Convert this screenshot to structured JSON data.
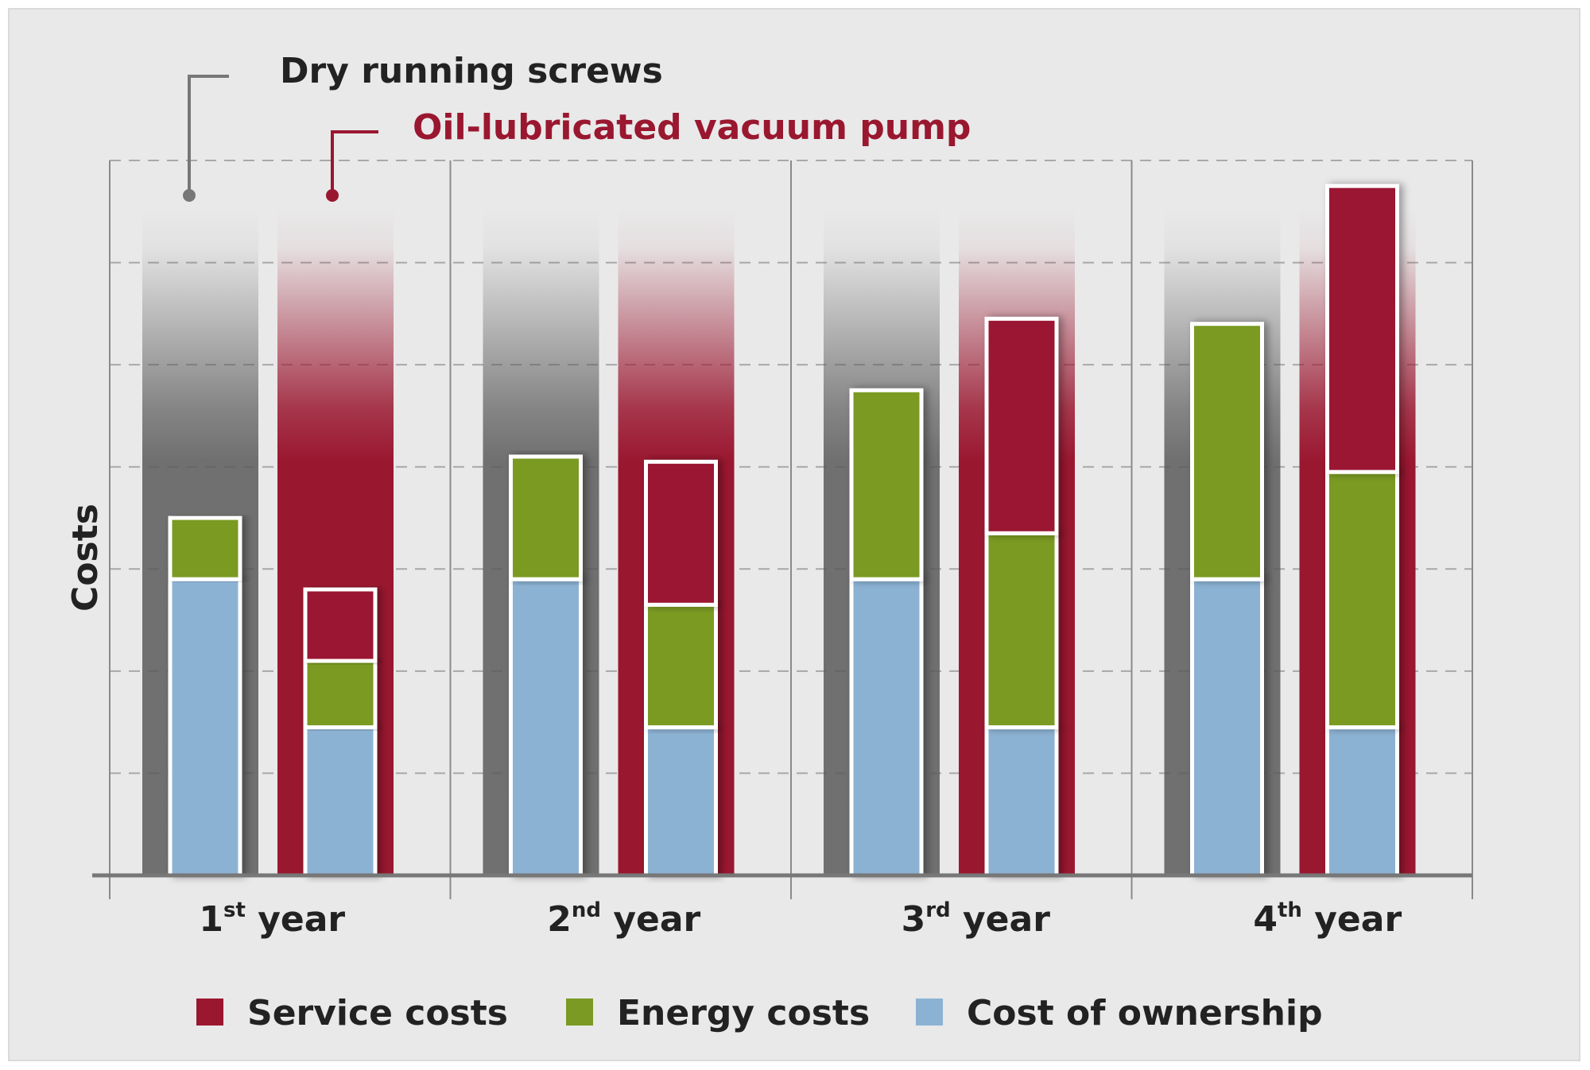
{
  "chart_data": {
    "type": "bar",
    "variant": "stacked",
    "title": "",
    "xlabel": "",
    "ylabel": "Costs",
    "ylim": [
      0,
      7
    ],
    "grid": true,
    "categories": [
      {
        "num": "1",
        "sup": "st",
        "rest": " year"
      },
      {
        "num": "2",
        "sup": "nd",
        "rest": " year"
      },
      {
        "num": "3",
        "sup": "rd",
        "rest": " year"
      },
      {
        "num": "4",
        "sup": "th",
        "rest": " year"
      }
    ],
    "groups": [
      {
        "name": "Dry running screws",
        "color": "#5a5a5a",
        "stacks": [
          {
            "ownership": 2.9,
            "energy": 0.6,
            "service": 0
          },
          {
            "ownership": 2.9,
            "energy": 1.2,
            "service": 0
          },
          {
            "ownership": 2.9,
            "energy": 1.85,
            "service": 0
          },
          {
            "ownership": 2.9,
            "energy": 2.5,
            "service": 0
          }
        ]
      },
      {
        "name": "Oil-lubricated vacuum pump",
        "color": "#9a1730",
        "stacks": [
          {
            "ownership": 1.45,
            "energy": 0.65,
            "service": 0.7
          },
          {
            "ownership": 1.45,
            "energy": 1.2,
            "service": 1.4
          },
          {
            "ownership": 1.45,
            "energy": 1.9,
            "service": 2.1
          },
          {
            "ownership": 1.45,
            "energy": 2.5,
            "service": 2.8
          }
        ]
      }
    ],
    "series": [
      {
        "key": "service",
        "name": "Service costs",
        "color": "#9a1730"
      },
      {
        "key": "energy",
        "name": "Energy costs",
        "color": "#7a9a24"
      },
      {
        "key": "ownership",
        "name": "Cost of ownership",
        "color": "#8cb2d3"
      }
    ],
    "legend": "bottom"
  }
}
